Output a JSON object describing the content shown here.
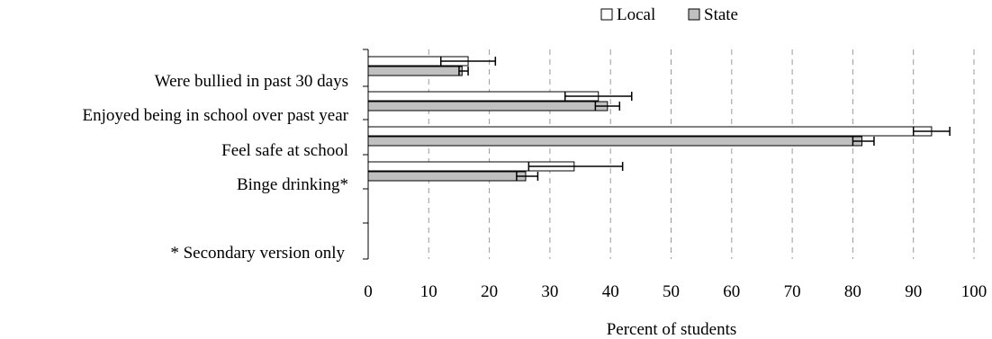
{
  "chart_data": {
    "type": "bar",
    "orientation": "horizontal",
    "categories": [
      "Were bullied in past 30 days",
      "Enjoyed being in school over past year",
      "Feel safe at school",
      "Binge drinking*"
    ],
    "series": [
      {
        "name": "Local",
        "values": [
          16.5,
          38.0,
          93.0,
          34.0
        ],
        "error": [
          [
            12,
            21
          ],
          [
            32.5,
            43.5
          ],
          [
            90,
            96
          ],
          [
            26.5,
            42
          ]
        ]
      },
      {
        "name": "State",
        "values": [
          15.5,
          39.5,
          81.5,
          26.0
        ],
        "error": [
          [
            15,
            16.5
          ],
          [
            37.5,
            41.5
          ],
          [
            80,
            83.5
          ],
          [
            24.5,
            28
          ]
        ]
      }
    ],
    "footnote": "* Secondary version only",
    "xlabel": "Percent of students",
    "xlim": [
      0,
      100
    ],
    "xticks": [
      "0",
      "10",
      "20",
      "30",
      "40",
      "50",
      "60",
      "70",
      "80",
      "90",
      "100"
    ],
    "grid": "vertical dashed",
    "legend_position": "top-right",
    "colors": {
      "Local": "#ffffff",
      "State": "#c0c0c0",
      "grid": "#999999"
    }
  }
}
